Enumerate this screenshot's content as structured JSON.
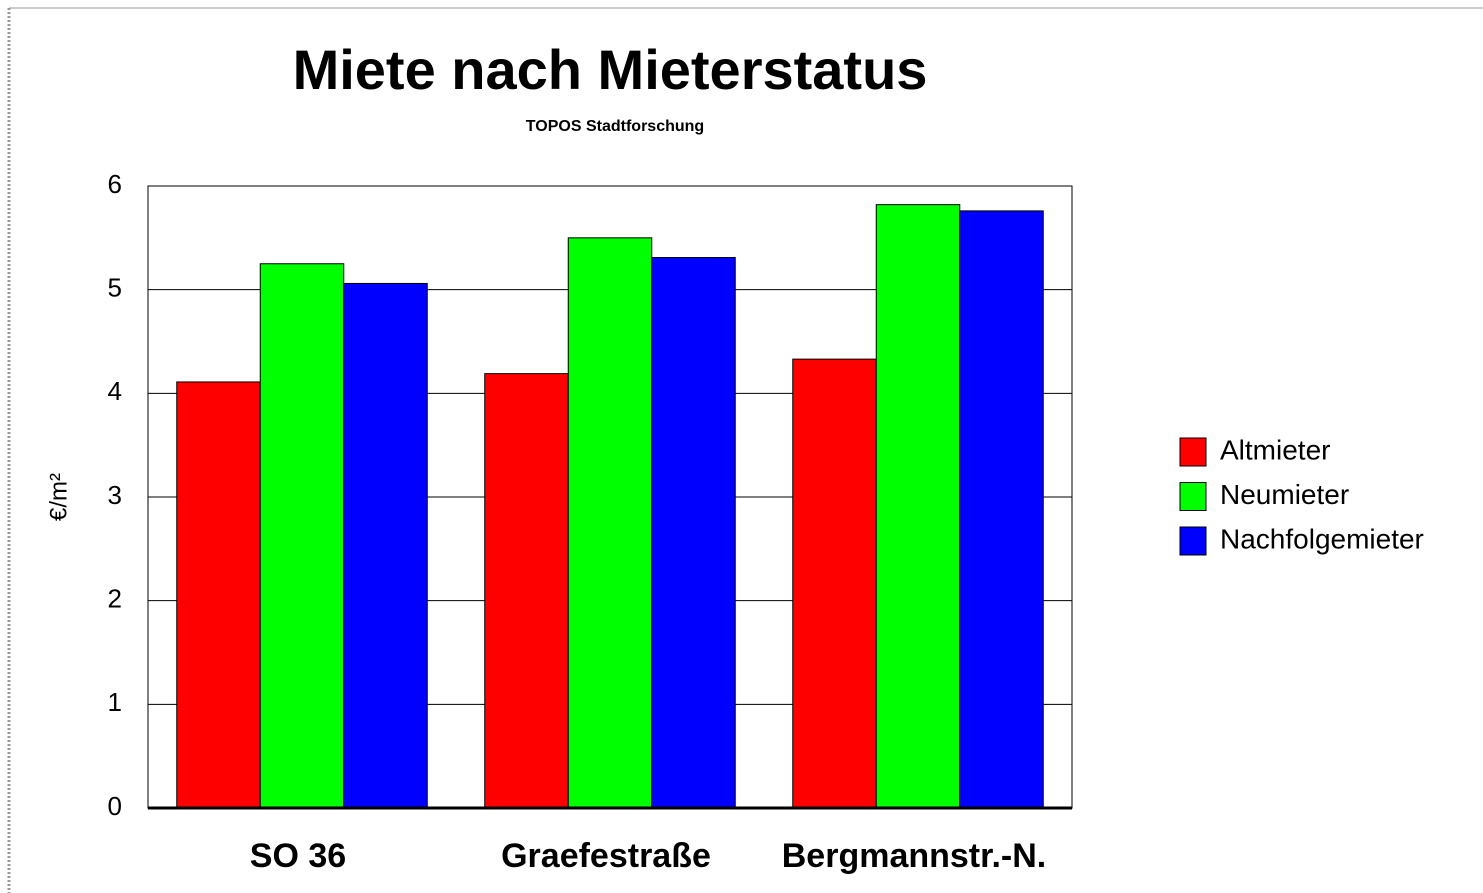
{
  "chart_data": {
    "type": "bar",
    "title": "Miete nach Mieterstatus",
    "subtitle": "TOPOS Stadtforschung",
    "y_label": "€/m²",
    "categories": [
      "SO 36",
      "Graefestraße",
      "Bergmannstr.-N."
    ],
    "series": [
      {
        "name": "Altmieter",
        "color": "#ff0000",
        "values": [
          4.11,
          4.19,
          4.33
        ]
      },
      {
        "name": "Neumieter",
        "color": "#00ff00",
        "values": [
          5.25,
          5.5,
          5.82
        ]
      },
      {
        "name": "Nachfolgemieter",
        "color": "#0000ff",
        "values": [
          5.06,
          5.31,
          5.76
        ]
      }
    ],
    "ylim": [
      0,
      6
    ],
    "yticks": [
      0,
      1,
      2,
      3,
      4,
      5,
      6
    ],
    "grid": true,
    "legend": "right"
  }
}
